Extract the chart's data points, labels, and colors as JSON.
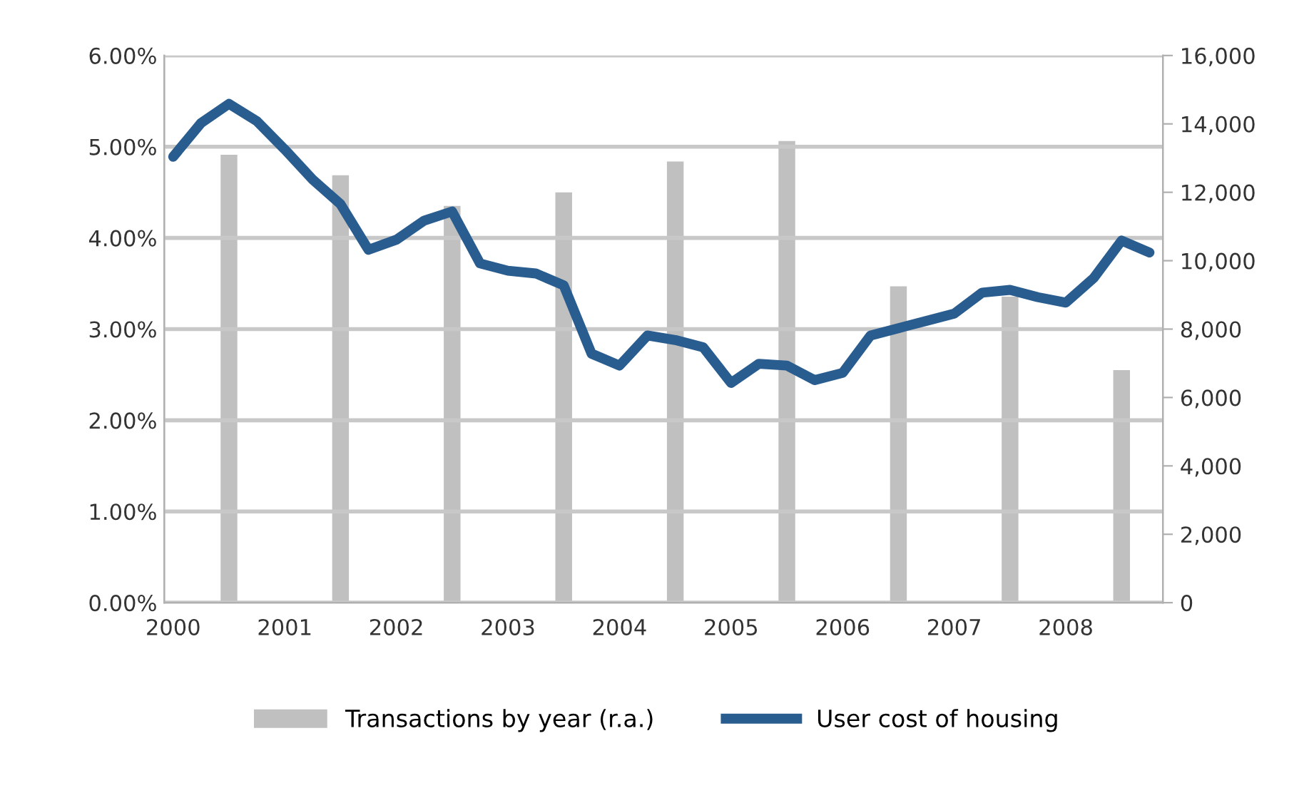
{
  "chart_data": {
    "type": "line",
    "x": [
      2000,
      2000.25,
      2000.5,
      2000.75,
      2001,
      2001.25,
      2001.5,
      2001.75,
      2002,
      2002.25,
      2002.5,
      2002.75,
      2003,
      2003.25,
      2003.5,
      2003.75,
      2004,
      2004.25,
      2004.5,
      2004.75,
      2005,
      2005.25,
      2005.5,
      2005.75,
      2006,
      2006.25,
      2006.5,
      2006.75,
      2007,
      2007.25,
      2007.5,
      2007.75,
      2008,
      2008.25,
      2008.5,
      2008.75
    ],
    "xlim": [
      1999.92,
      2008.87
    ],
    "xticks": [
      2000,
      2001,
      2002,
      2003,
      2004,
      2005,
      2006,
      2007,
      2008
    ],
    "ylim": [
      0,
      6
    ],
    "yticks": [
      {
        "value": 0,
        "label": "0.00%"
      },
      {
        "value": 1,
        "label": "1.00%"
      },
      {
        "value": 2,
        "label": "2.00%"
      },
      {
        "value": 3,
        "label": "3.00%"
      },
      {
        "value": 4,
        "label": "4.00%"
      },
      {
        "value": 5,
        "label": "5.00%"
      },
      {
        "value": 6,
        "label": "6.00%"
      }
    ],
    "y2lim": [
      0,
      16000
    ],
    "y2ticks": [
      0,
      {
        "value": 2000,
        "label": "2,000"
      },
      {
        "value": 4000,
        "label": "4,000"
      },
      {
        "value": 6000,
        "label": "6,000"
      },
      {
        "value": 8000,
        "label": "8,000"
      },
      {
        "value": 10000,
        "label": "10,000"
      },
      {
        "value": 12000,
        "label": "12,000"
      },
      {
        "value": 14000,
        "label": "14,000"
      },
      {
        "value": 16000,
        "label": "16,000"
      }
    ],
    "grid": "y",
    "legend": "bottom",
    "series": [
      {
        "name": "Transactions by year (r.a.)",
        "type": "bar",
        "axis": "y2",
        "color": "#c0c0c0",
        "x": [
          2000.5,
          2001.5,
          2002.5,
          2003.5,
          2004.5,
          2005.5,
          2006.5,
          2007.5,
          2008.5
        ],
        "values": [
          13100,
          12500,
          11600,
          12000,
          12900,
          13500,
          9250,
          8950,
          6800
        ]
      },
      {
        "name": "User cost of housing",
        "color": "#2a5d8f",
        "values": [
          4.89,
          5.26,
          5.47,
          5.28,
          4.97,
          4.64,
          4.37,
          3.87,
          3.98,
          4.19,
          4.29,
          3.72,
          3.64,
          3.61,
          3.48,
          2.73,
          2.6,
          2.93,
          2.88,
          2.8,
          2.41,
          2.62,
          2.6,
          2.44,
          2.52,
          2.93,
          3.01,
          3.09,
          3.17,
          3.4,
          3.43,
          3.35,
          3.29,
          3.56,
          3.97,
          3.84
        ]
      }
    ]
  }
}
